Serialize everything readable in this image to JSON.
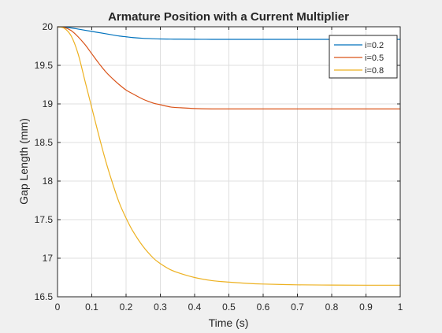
{
  "chart_data": {
    "type": "line",
    "title": "Armature Position with a Current Multiplier",
    "xlabel": "Time (s)",
    "ylabel": "Gap Length (mm)",
    "xlim": [
      0,
      1
    ],
    "ylim": [
      16.5,
      20
    ],
    "xticks": [
      "0",
      "0.1",
      "0.2",
      "0.3",
      "0.4",
      "0.5",
      "0.6",
      "0.7",
      "0.8",
      "0.9",
      "1"
    ],
    "yticks": [
      "16.5",
      "17",
      "17.5",
      "18",
      "18.5",
      "19",
      "19.5",
      "20"
    ],
    "grid": true,
    "legend_position": "top-right",
    "x": [
      0,
      0.02,
      0.04,
      0.06,
      0.08,
      0.1,
      0.12,
      0.14,
      0.16,
      0.18,
      0.2,
      0.22,
      0.25,
      0.28,
      0.3,
      0.33,
      0.36,
      0.4,
      0.45,
      0.5,
      0.55,
      0.6,
      0.7,
      0.8,
      0.9,
      1.0
    ],
    "series": [
      {
        "name": "i=0.2",
        "color": "#0072bd",
        "values": [
          20,
          19.995,
          19.985,
          19.97,
          19.955,
          19.94,
          19.925,
          19.91,
          19.895,
          19.88,
          19.87,
          19.86,
          19.85,
          19.845,
          19.842,
          19.84,
          19.839,
          19.838,
          19.837,
          19.837,
          19.837,
          19.837,
          19.837,
          19.837,
          19.837,
          19.837
        ]
      },
      {
        "name": "i=0.5",
        "color": "#d95319",
        "values": [
          20,
          19.99,
          19.95,
          19.87,
          19.77,
          19.65,
          19.53,
          19.42,
          19.33,
          19.25,
          19.18,
          19.13,
          19.06,
          19.01,
          18.99,
          18.96,
          18.95,
          18.94,
          18.935,
          18.935,
          18.935,
          18.935,
          18.935,
          18.935,
          18.935,
          18.935
        ]
      },
      {
        "name": "i=0.8",
        "color": "#edb120",
        "values": [
          20,
          19.98,
          19.88,
          19.65,
          19.3,
          18.95,
          18.6,
          18.27,
          17.98,
          17.72,
          17.52,
          17.35,
          17.15,
          17.0,
          16.93,
          16.85,
          16.8,
          16.75,
          16.71,
          16.69,
          16.675,
          16.665,
          16.655,
          16.652,
          16.65,
          16.65
        ]
      }
    ]
  }
}
